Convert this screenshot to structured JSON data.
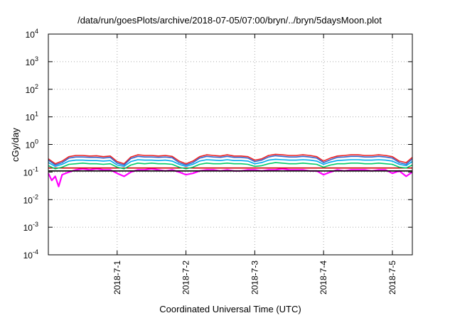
{
  "chart_data": {
    "type": "line",
    "title": "/data/run/goesPlots/archive/2018-07-05/07:00/bryn/../bryn/5daysMoon.plot",
    "xlabel": "Coordinated Universal Time (UTC)",
    "ylabel": "cGy/day",
    "yscale": "log",
    "ylim": [
      0.0001,
      10000
    ],
    "xlim": [
      "2018-06-30 00:00",
      "2018-07-05 07:00"
    ],
    "grid": true,
    "legend": "none",
    "y_ticks": [
      {
        "base": "10",
        "exp": "-4",
        "value": 0.0001
      },
      {
        "base": "10",
        "exp": "-3",
        "value": 0.001
      },
      {
        "base": "10",
        "exp": "-2",
        "value": 0.01
      },
      {
        "base": "10",
        "exp": "-1",
        "value": 0.1
      },
      {
        "base": "10",
        "exp": "0",
        "value": 1
      },
      {
        "base": "10",
        "exp": "1",
        "value": 10
      },
      {
        "base": "10",
        "exp": "2",
        "value": 100
      },
      {
        "base": "10",
        "exp": "3",
        "value": 1000
      },
      {
        "base": "10",
        "exp": "4",
        "value": 10000
      }
    ],
    "x_ticks": [
      "2018-7-1",
      "2018-7-2",
      "2018-7-3",
      "2018-7-4",
      "2018-7-5"
    ],
    "x_tick_days": [
      1,
      2,
      3,
      4,
      5
    ],
    "series_colors": [
      "#ff00ff",
      "#cc0000",
      "#000000",
      "#00cc66",
      "#00aaee",
      "#ee2222",
      "#3366cc"
    ],
    "series": [
      {
        "color": "#ff00ff",
        "x_days": [
          0,
          0.05,
          0.1,
          0.15,
          0.2,
          0.3,
          0.4,
          0.5,
          0.6,
          0.7,
          0.8,
          0.9,
          1.0,
          1.1,
          1.2,
          1.3,
          1.4,
          1.5,
          1.6,
          1.7,
          1.8,
          1.9,
          2.0,
          2.1,
          2.2,
          2.3,
          2.4,
          2.5,
          2.6,
          2.7,
          2.8,
          2.9,
          3.0,
          3.1,
          3.2,
          3.3,
          3.4,
          3.5,
          3.6,
          3.7,
          3.8,
          3.9,
          4.0,
          4.1,
          4.2,
          4.3,
          4.4,
          4.5,
          4.6,
          4.7,
          4.8,
          4.9,
          5.0,
          5.1,
          5.2,
          5.29
        ],
        "values": [
          0.09,
          0.05,
          0.07,
          0.03,
          0.08,
          0.1,
          0.12,
          0.13,
          0.12,
          0.13,
          0.12,
          0.12,
          0.09,
          0.07,
          0.1,
          0.12,
          0.12,
          0.13,
          0.12,
          0.11,
          0.12,
          0.1,
          0.08,
          0.09,
          0.11,
          0.12,
          0.12,
          0.11,
          0.12,
          0.11,
          0.11,
          0.12,
          0.12,
          0.11,
          0.12,
          0.12,
          0.13,
          0.12,
          0.12,
          0.12,
          0.11,
          0.11,
          0.08,
          0.1,
          0.12,
          0.11,
          0.12,
          0.12,
          0.12,
          0.11,
          0.12,
          0.12,
          0.09,
          0.11,
          0.07,
          0.1
        ]
      },
      {
        "color": "#cc0000",
        "x_days": [
          0,
          0.5,
          1.0,
          1.5,
          2.0,
          2.5,
          3.0,
          3.5,
          4.0,
          4.5,
          5.0,
          5.29
        ],
        "values": [
          0.14,
          0.14,
          0.14,
          0.14,
          0.14,
          0.14,
          0.14,
          0.14,
          0.14,
          0.14,
          0.14,
          0.14
        ]
      },
      {
        "color": "#000000",
        "x_days": [
          0,
          0.5,
          1.0,
          1.5,
          2.0,
          2.5,
          3.0,
          3.5,
          4.0,
          4.5,
          5.0,
          5.29
        ],
        "values": [
          0.11,
          0.11,
          0.11,
          0.11,
          0.11,
          0.11,
          0.11,
          0.11,
          0.11,
          0.11,
          0.11,
          0.11
        ]
      },
      {
        "color": "#00cc66",
        "x_days": [
          0,
          0.1,
          0.2,
          0.3,
          0.4,
          0.5,
          0.6,
          0.7,
          0.8,
          0.9,
          1.0,
          1.1,
          1.2,
          1.3,
          1.4,
          1.5,
          1.6,
          1.7,
          1.8,
          1.9,
          2.0,
          2.1,
          2.2,
          2.3,
          2.4,
          2.5,
          2.6,
          2.7,
          2.8,
          2.9,
          3.0,
          3.1,
          3.2,
          3.3,
          3.4,
          3.5,
          3.6,
          3.7,
          3.8,
          3.9,
          4.0,
          4.1,
          4.2,
          4.3,
          4.4,
          4.5,
          4.6,
          4.7,
          4.8,
          4.9,
          5.0,
          5.1,
          5.2,
          5.29
        ],
        "values": [
          0.17,
          0.13,
          0.15,
          0.19,
          0.2,
          0.21,
          0.2,
          0.2,
          0.19,
          0.2,
          0.15,
          0.13,
          0.18,
          0.21,
          0.2,
          0.21,
          0.2,
          0.2,
          0.19,
          0.15,
          0.13,
          0.15,
          0.19,
          0.21,
          0.2,
          0.2,
          0.21,
          0.2,
          0.2,
          0.19,
          0.16,
          0.17,
          0.2,
          0.22,
          0.21,
          0.2,
          0.2,
          0.21,
          0.2,
          0.19,
          0.15,
          0.18,
          0.2,
          0.2,
          0.21,
          0.21,
          0.2,
          0.2,
          0.21,
          0.2,
          0.19,
          0.15,
          0.14,
          0.18
        ]
      },
      {
        "color": "#00aaee",
        "x_days": [
          0,
          0.1,
          0.2,
          0.3,
          0.4,
          0.5,
          0.6,
          0.7,
          0.8,
          0.9,
          1.0,
          1.1,
          1.2,
          1.3,
          1.4,
          1.5,
          1.6,
          1.7,
          1.8,
          1.9,
          2.0,
          2.1,
          2.2,
          2.3,
          2.4,
          2.5,
          2.6,
          2.7,
          2.8,
          2.9,
          3.0,
          3.1,
          3.2,
          3.3,
          3.4,
          3.5,
          3.6,
          3.7,
          3.8,
          3.9,
          4.0,
          4.1,
          4.2,
          4.3,
          4.4,
          4.5,
          4.6,
          4.7,
          4.8,
          4.9,
          5.0,
          5.1,
          5.2,
          5.29
        ],
        "values": [
          0.22,
          0.16,
          0.19,
          0.25,
          0.27,
          0.27,
          0.26,
          0.26,
          0.25,
          0.26,
          0.18,
          0.16,
          0.24,
          0.28,
          0.27,
          0.27,
          0.26,
          0.27,
          0.25,
          0.19,
          0.16,
          0.19,
          0.25,
          0.28,
          0.27,
          0.26,
          0.28,
          0.26,
          0.26,
          0.25,
          0.2,
          0.22,
          0.27,
          0.29,
          0.28,
          0.27,
          0.27,
          0.28,
          0.27,
          0.25,
          0.19,
          0.23,
          0.26,
          0.27,
          0.28,
          0.28,
          0.27,
          0.27,
          0.28,
          0.27,
          0.25,
          0.19,
          0.17,
          0.24
        ]
      },
      {
        "color": "#ee2222",
        "x_days": [
          0,
          0.1,
          0.2,
          0.3,
          0.4,
          0.5,
          0.6,
          0.7,
          0.8,
          0.9,
          1.0,
          1.1,
          1.2,
          1.3,
          1.4,
          1.5,
          1.6,
          1.7,
          1.8,
          1.9,
          2.0,
          2.1,
          2.2,
          2.3,
          2.4,
          2.5,
          2.6,
          2.7,
          2.8,
          2.9,
          3.0,
          3.1,
          3.2,
          3.3,
          3.4,
          3.5,
          3.6,
          3.7,
          3.8,
          3.9,
          4.0,
          4.1,
          4.2,
          4.3,
          4.4,
          4.5,
          4.6,
          4.7,
          4.8,
          4.9,
          5.0,
          5.1,
          5.2,
          5.29
        ],
        "values": [
          0.3,
          0.2,
          0.25,
          0.36,
          0.4,
          0.4,
          0.38,
          0.39,
          0.36,
          0.38,
          0.24,
          0.2,
          0.35,
          0.42,
          0.4,
          0.4,
          0.38,
          0.4,
          0.37,
          0.25,
          0.2,
          0.25,
          0.36,
          0.42,
          0.4,
          0.38,
          0.42,
          0.38,
          0.38,
          0.36,
          0.27,
          0.3,
          0.4,
          0.44,
          0.42,
          0.4,
          0.4,
          0.42,
          0.4,
          0.36,
          0.25,
          0.32,
          0.38,
          0.4,
          0.42,
          0.42,
          0.4,
          0.4,
          0.42,
          0.4,
          0.36,
          0.25,
          0.22,
          0.34
        ]
      },
      {
        "color": "#3366cc",
        "x_days": [
          0,
          0.1,
          0.2,
          0.3,
          0.4,
          0.5,
          0.6,
          0.7,
          0.8,
          0.9,
          1.0,
          1.1,
          1.2,
          1.3,
          1.4,
          1.5,
          1.6,
          1.7,
          1.8,
          1.9,
          2.0,
          2.1,
          2.2,
          2.3,
          2.4,
          2.5,
          2.6,
          2.7,
          2.8,
          2.9,
          3.0,
          3.1,
          3.2,
          3.3,
          3.4,
          3.5,
          3.6,
          3.7,
          3.8,
          3.9,
          4.0,
          4.1,
          4.2,
          4.3,
          4.4,
          4.5,
          4.6,
          4.7,
          4.8,
          4.9,
          5.0,
          5.1,
          5.2,
          5.29
        ],
        "values": [
          0.27,
          0.18,
          0.22,
          0.32,
          0.35,
          0.35,
          0.34,
          0.34,
          0.32,
          0.34,
          0.21,
          0.18,
          0.31,
          0.37,
          0.35,
          0.35,
          0.34,
          0.35,
          0.33,
          0.22,
          0.18,
          0.22,
          0.32,
          0.37,
          0.35,
          0.34,
          0.37,
          0.34,
          0.34,
          0.32,
          0.24,
          0.27,
          0.35,
          0.39,
          0.37,
          0.35,
          0.35,
          0.37,
          0.35,
          0.32,
          0.22,
          0.28,
          0.34,
          0.35,
          0.37,
          0.37,
          0.35,
          0.35,
          0.37,
          0.35,
          0.32,
          0.22,
          0.19,
          0.3
        ]
      }
    ]
  }
}
